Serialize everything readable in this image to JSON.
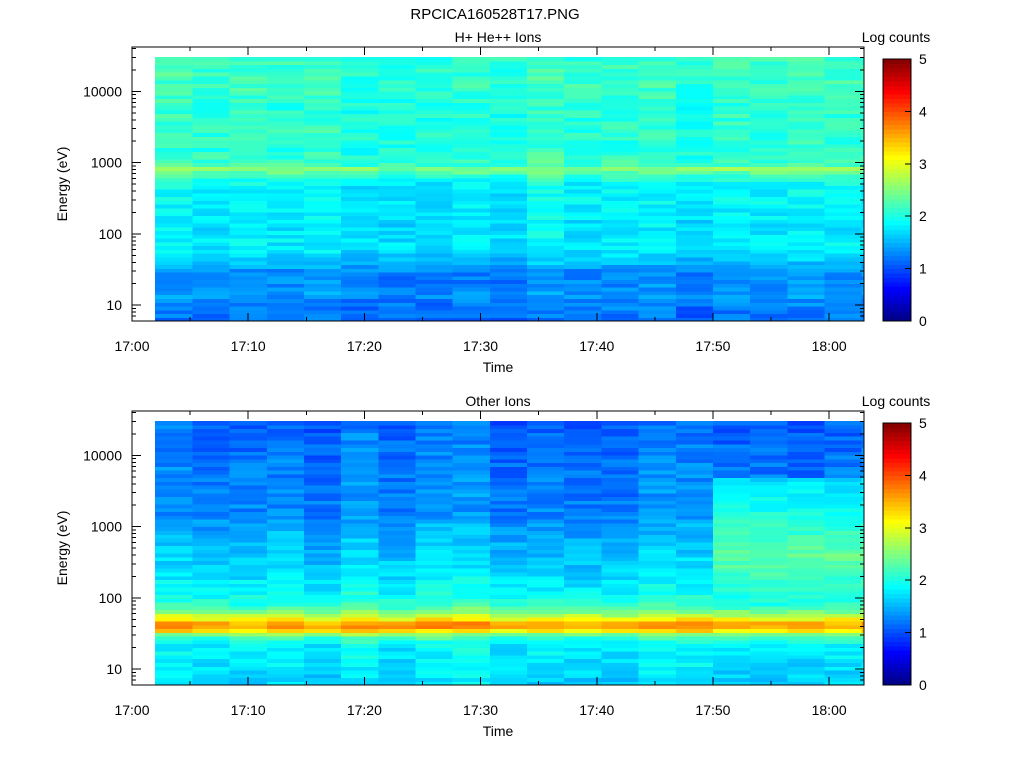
{
  "figure_title": "RPCICA160528T17.PNG",
  "colorbar": {
    "label": "Log counts",
    "ticks": [
      "0",
      "1",
      "2",
      "3",
      "4",
      "5"
    ],
    "range": [
      0,
      5
    ],
    "colormap": "jet"
  },
  "chart_data": [
    {
      "type": "heatmap",
      "title": "H+ He++ Ions",
      "xlabel": "Time",
      "ylabel": "Energy (eV)",
      "y_scale": "log",
      "ylim": [
        6,
        42000
      ],
      "xlim": [
        "17:00",
        "18:03"
      ],
      "x_ticks": [
        "17:00",
        "17:10",
        "17:20",
        "17:30",
        "17:40",
        "17:50",
        "18:00"
      ],
      "y_ticks": [
        "10",
        "100",
        "1000",
        "10000"
      ],
      "data_start": "17:02",
      "time_bin_minutes": 3.2,
      "time_bins": 20,
      "profile_energy_eV": [
        6,
        10,
        14,
        20,
        28,
        38,
        55,
        80,
        120,
        180,
        300,
        500,
        720,
        800,
        880,
        1500,
        3000,
        6000,
        12000,
        25000,
        42000
      ],
      "profile_log_counts": [
        1.15,
        1.25,
        1.35,
        1.3,
        1.3,
        1.5,
        1.75,
        1.8,
        1.75,
        1.8,
        1.85,
        1.85,
        2.2,
        2.8,
        2.2,
        2.05,
        2.1,
        2.05,
        2.15,
        2.15,
        2.1
      ]
    },
    {
      "type": "heatmap",
      "title": "Other Ions",
      "xlabel": "Time",
      "ylabel": "Energy (eV)",
      "y_scale": "log",
      "ylim": [
        6,
        42000
      ],
      "xlim": [
        "17:00",
        "18:03"
      ],
      "x_ticks": [
        "17:00",
        "17:10",
        "17:20",
        "17:30",
        "17:40",
        "17:50",
        "18:00"
      ],
      "y_ticks": [
        "10",
        "100",
        "1000",
        "10000"
      ],
      "data_start": "17:02",
      "time_bin_minutes": 3.2,
      "time_bins": 20,
      "profile_energy_eV": [
        6,
        10,
        15,
        22,
        30,
        36,
        42,
        48,
        55,
        65,
        80,
        120,
        200,
        400,
        800,
        1500,
        3000,
        6000,
        12000,
        25000,
        42000
      ],
      "profile_log_counts": [
        1.7,
        1.75,
        1.8,
        1.85,
        2.3,
        3.4,
        3.75,
        3.3,
        2.9,
        2.5,
        2.1,
        1.9,
        1.75,
        1.6,
        1.5,
        1.3,
        1.3,
        1.25,
        1.2,
        1.15,
        1.1
      ],
      "enhancement": {
        "time_start": "17:50",
        "energy_range_eV": [
          100,
          5000
        ],
        "peak_log_counts": 2.35
      }
    }
  ]
}
